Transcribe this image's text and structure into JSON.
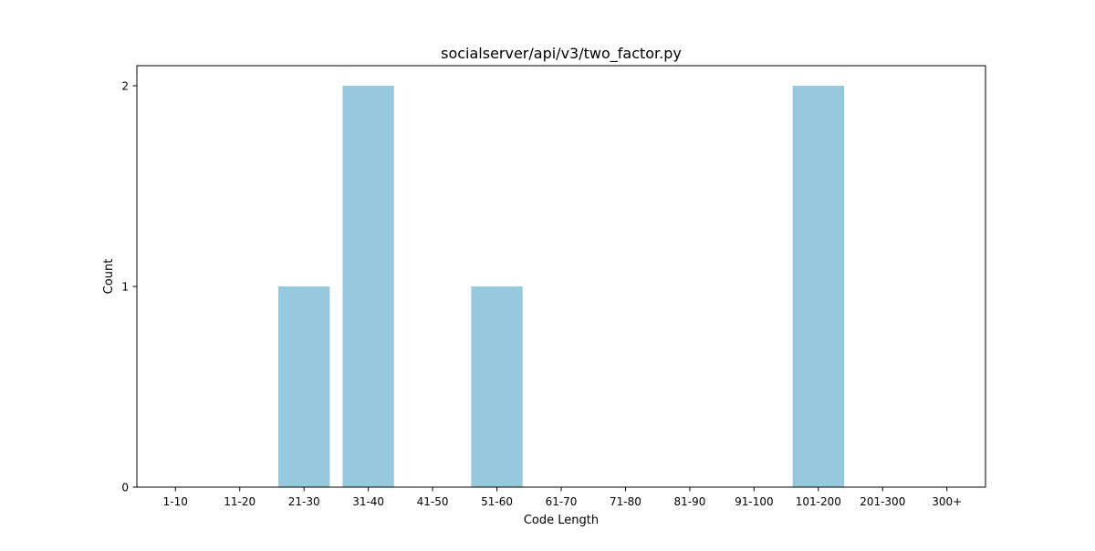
{
  "chart_data": {
    "type": "bar",
    "title": "socialserver/api/v3/two_factor.py",
    "xlabel": "Code Length",
    "ylabel": "Count",
    "categories": [
      "1-10",
      "11-20",
      "21-30",
      "31-40",
      "41-50",
      "51-60",
      "61-70",
      "71-80",
      "81-90",
      "91-100",
      "101-200",
      "201-300",
      "300+"
    ],
    "values": [
      0,
      0,
      1,
      2,
      0,
      1,
      0,
      0,
      0,
      0,
      2,
      0,
      0
    ],
    "ylim": [
      0,
      2.1
    ],
    "yticks": [
      "0",
      "1",
      "2"
    ],
    "grid": false,
    "legend": "none",
    "bar_color": "#96c9dd",
    "axis_color": "#000000"
  }
}
